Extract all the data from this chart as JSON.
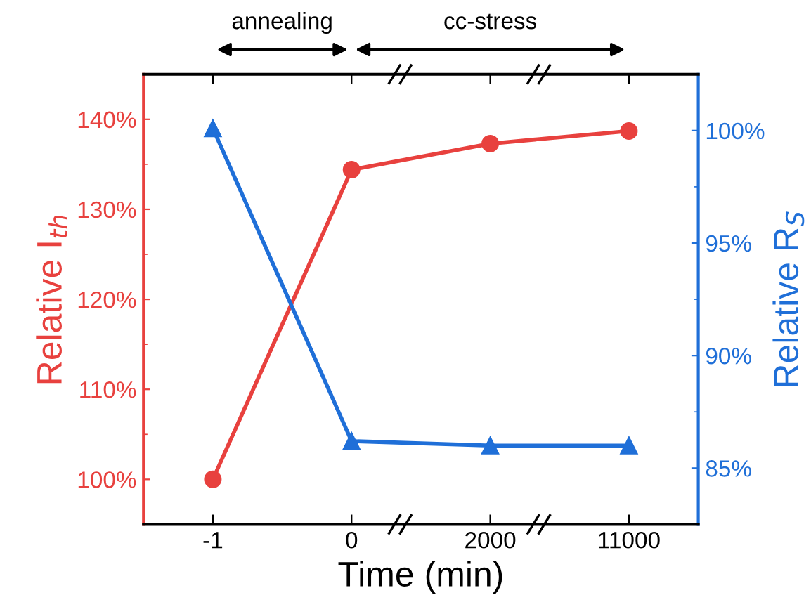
{
  "chart_data": {
    "type": "line",
    "xlabel": "Time (min)",
    "ylabel": "Relative I$_{th}$",
    "y2label": "Relative R$_{S}$",
    "categories": [
      "-1",
      "0",
      "2000",
      "11000"
    ],
    "series": [
      {
        "name": null,
        "color": "#e8413e",
        "values": [
          100,
          134.4,
          137.3,
          138.7
        ],
        "marker": "circle"
      },
      {
        "name": null,
        "color": "#1f6fd8",
        "values": [
          100.1,
          86.2,
          86.0,
          86.0
        ],
        "marker": "triangle",
        "axis": "y2"
      }
    ],
    "ylim": [
      95,
      145
    ],
    "yticks": [
      {
        "value": 100,
        "label": "100%"
      },
      {
        "value": 110,
        "label": "110%"
      },
      {
        "value": 120,
        "label": "120%"
      },
      {
        "value": 130,
        "label": "130%"
      },
      {
        "value": 140,
        "label": "140%"
      }
    ],
    "y2lim": [
      82.5,
      102.5
    ],
    "y2ticks": [
      {
        "value": 85,
        "label": "85%"
      },
      {
        "value": 90,
        "label": "90%"
      },
      {
        "value": 95,
        "label": "95%"
      },
      {
        "value": 100,
        "label": "100%"
      }
    ],
    "annotations": [
      "annealing",
      "cc-stress"
    ],
    "grid": false,
    "legend": false,
    "line_style": "solid"
  }
}
